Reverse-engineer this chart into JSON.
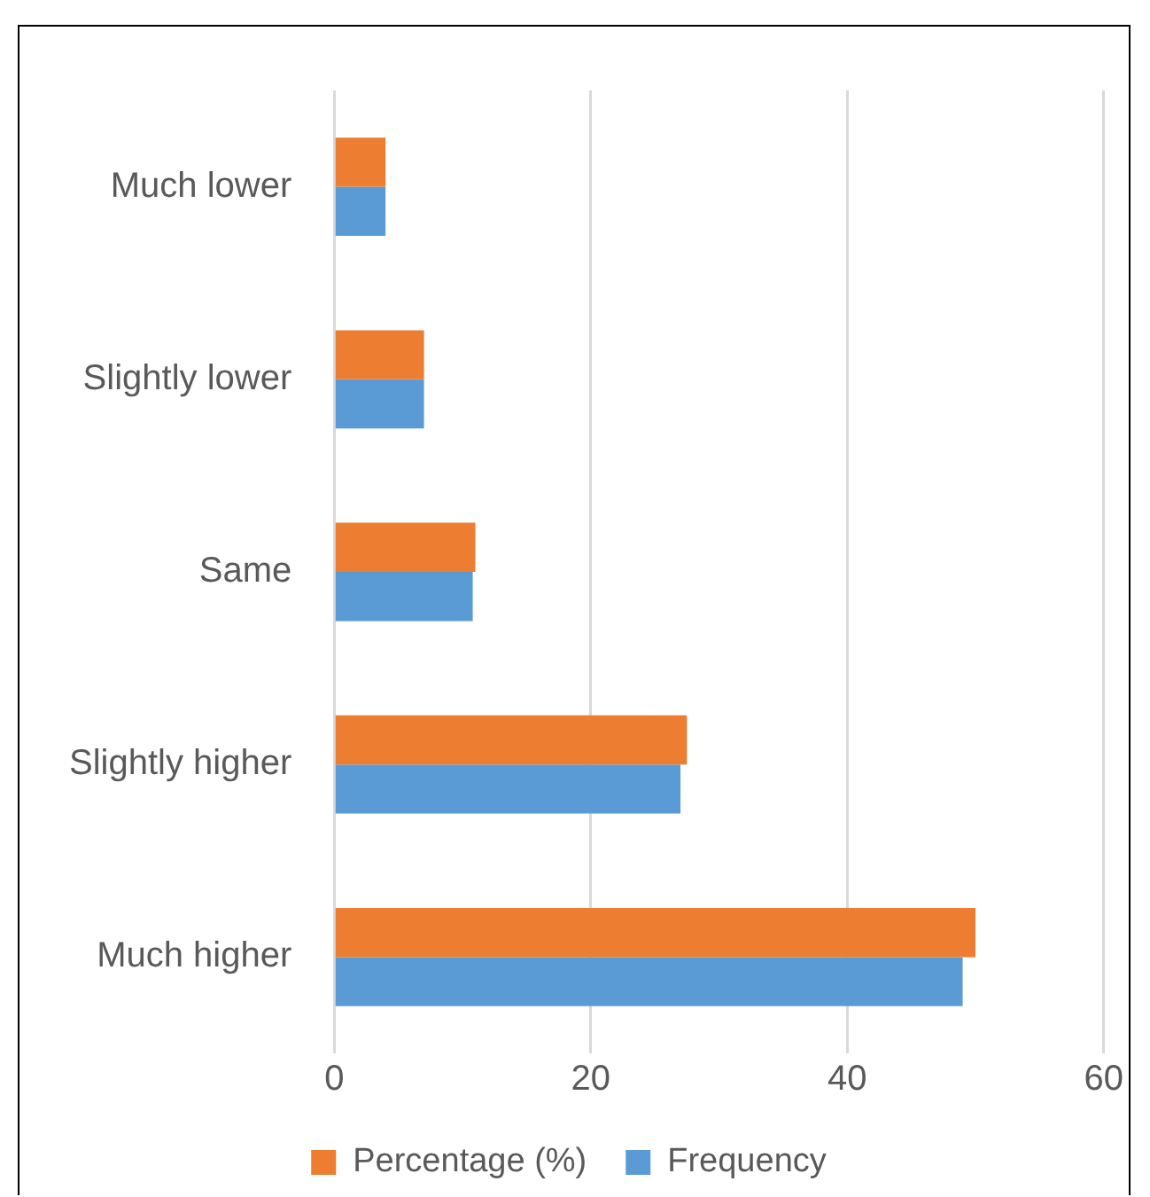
{
  "chart_data": {
    "type": "bar",
    "orientation": "horizontal",
    "categories": [
      "Much lower",
      "Slightly lower",
      "Same",
      "Slightly higher",
      "Much higher"
    ],
    "series": [
      {
        "name": "Percentage (%)",
        "color": "#ed7d31",
        "values": [
          4,
          7,
          11,
          27.5,
          50
        ]
      },
      {
        "name": "Frequency",
        "color": "#5b9bd5",
        "values": [
          4,
          7,
          10.8,
          27,
          49
        ]
      }
    ],
    "xlim": [
      0,
      60
    ],
    "xticks": [
      0,
      20,
      40,
      60
    ],
    "grid": "x",
    "legend": "bottom"
  }
}
